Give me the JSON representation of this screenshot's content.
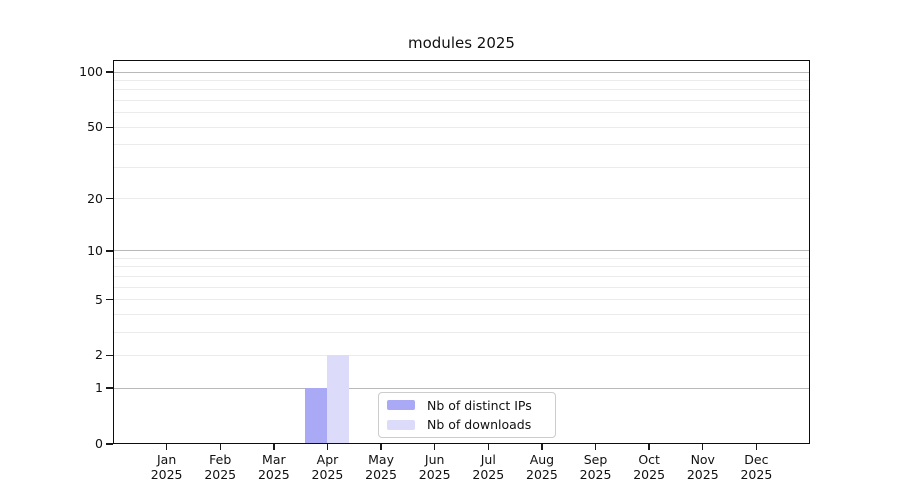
{
  "chart_data": {
    "type": "bar",
    "title": "modules 2025",
    "categories": [
      "Jan",
      "Feb",
      "Mar",
      "Apr",
      "May",
      "Jun",
      "Jul",
      "Aug",
      "Sep",
      "Oct",
      "Nov",
      "Dec"
    ],
    "tick_year": "2025",
    "series": [
      {
        "name": "Nb of distinct IPs",
        "color": "#a9a9f5",
        "values": [
          0,
          0,
          0,
          1,
          0,
          0,
          0,
          0,
          0,
          0,
          0,
          0
        ]
      },
      {
        "name": "Nb of downloads",
        "color": "#dcdcfa",
        "values": [
          0,
          0,
          0,
          2,
          0,
          0,
          0,
          0,
          0,
          0,
          0,
          0
        ]
      }
    ],
    "yscale": "log10(1+x)",
    "ylim": [
      0,
      116
    ],
    "yticks": [
      0,
      1,
      2,
      5,
      10,
      20,
      50,
      100
    ],
    "major_gridlines": [
      1,
      10,
      100
    ],
    "minor_gridlines": [
      2,
      3,
      4,
      5,
      6,
      7,
      8,
      9,
      20,
      30,
      40,
      50,
      60,
      70,
      80,
      90
    ],
    "grid": "horizontal",
    "legend_position": "lower-center",
    "colors": {
      "background": "#ffffff",
      "axis": "#0d0d0d",
      "major_grid": "#b9b9b9",
      "minor_grid": "#ebebeb",
      "legend_border": "#cccccc",
      "text": "#111111"
    }
  }
}
